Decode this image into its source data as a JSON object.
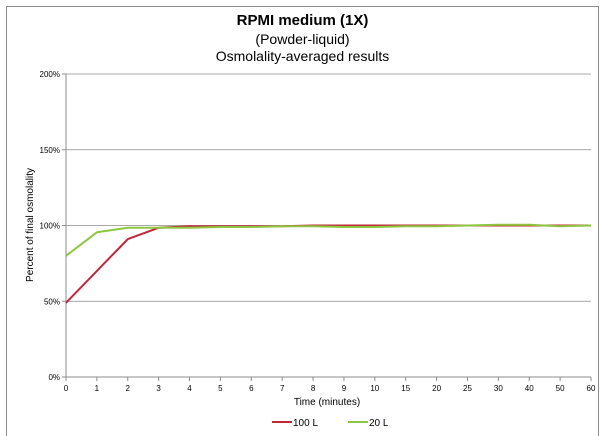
{
  "chart_data": {
    "type": "line",
    "title": "RPMI medium (1X)",
    "subtitle": "(Powder-liquid)",
    "subtitle2": "Osmolality-averaged results",
    "xlabel": "Time (minutes)",
    "ylabel": "Percent of final osmolality",
    "categories": [
      "0",
      "1",
      "2",
      "3",
      "4",
      "5",
      "6",
      "7",
      "8",
      "9",
      "10",
      "15",
      "20",
      "25",
      "30",
      "40",
      "50",
      "60"
    ],
    "ylim": [
      0,
      200
    ],
    "yticks": [
      "0%",
      "50%",
      "100%",
      "150%",
      "200%"
    ],
    "ytick_values": [
      0,
      50,
      100,
      150,
      200
    ],
    "grid": true,
    "legend_position": "bottom",
    "series": [
      {
        "name": "100 L",
        "color": "#c0283a",
        "values": [
          49,
          70,
          91,
          98.5,
          99.5,
          99.5,
          99.5,
          99.5,
          100,
          100,
          100,
          100,
          100,
          100,
          100,
          100,
          100,
          100
        ]
      },
      {
        "name": "20 L",
        "color": "#8dc63f",
        "values": [
          80,
          95.5,
          98.5,
          98.5,
          98.5,
          99,
          99,
          99.5,
          99.5,
          99,
          99,
          99.5,
          99.5,
          100,
          100.5,
          100.5,
          99.5,
          100
        ]
      }
    ]
  }
}
